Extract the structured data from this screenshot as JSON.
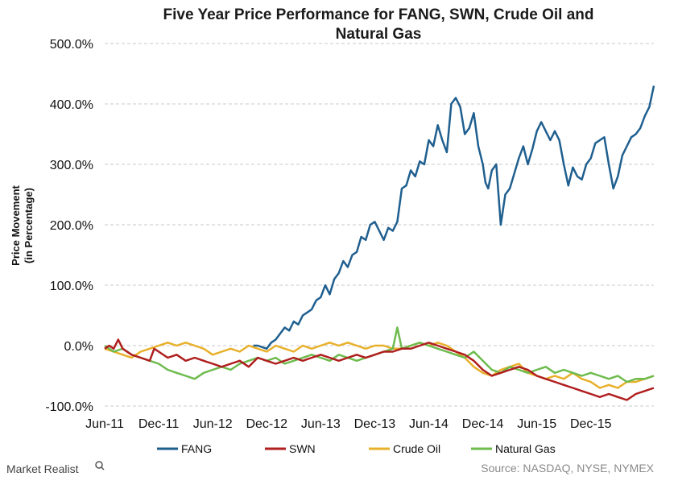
{
  "chart_data": {
    "type": "line",
    "title_line1": "Five Year Price Performance for FANG, SWN, Crude Oil and",
    "title_line2": "Natural Gas",
    "ylabel_line1": "Price Movement",
    "ylabel_line2": "(in Percentage)",
    "ylim": [
      -100,
      500
    ],
    "y_ticks": [
      "-100.0%",
      "0.0%",
      "100.0%",
      "200.0%",
      "300.0%",
      "400.0%",
      "500.0%"
    ],
    "y_tick_values": [
      -100,
      0,
      100,
      200,
      300,
      400,
      500
    ],
    "x_ticks": [
      "Jun-11",
      "Dec-11",
      "Jun-12",
      "Dec-12",
      "Jun-13",
      "Dec-13",
      "Jun-14",
      "Dec-14",
      "Jun-15",
      "Dec-15"
    ],
    "x_tick_values": [
      0,
      6,
      12,
      18,
      24,
      30,
      36,
      42,
      48,
      54
    ],
    "xlim": [
      0,
      61
    ],
    "x_unit": "months since Jun-11",
    "grid": true,
    "legend_position": "bottom",
    "colors": {
      "FANG": "#1f5f8f",
      "SWN": "#b01e1e",
      "Crude Oil": "#e8b02a",
      "Natural Gas": "#6dbb4d",
      "grid": "#c8c8c8"
    },
    "series": [
      {
        "name": "FANG",
        "x": [
          16.5,
          17,
          18,
          18.5,
          19,
          19.5,
          20,
          20.5,
          21,
          21.5,
          22,
          22.5,
          23,
          23.5,
          24,
          24.5,
          25,
          25.5,
          26,
          26.5,
          27,
          27.5,
          28,
          28.5,
          29,
          29.5,
          30,
          30.5,
          31,
          31.5,
          32,
          32.5,
          33,
          33.5,
          34,
          34.5,
          35,
          35.5,
          36,
          36.5,
          37,
          37.5,
          38,
          38.5,
          39,
          39.5,
          40,
          40.5,
          41,
          41.5,
          42,
          42.3,
          42.6,
          43,
          43.5,
          44,
          44.5,
          45,
          45.5,
          46,
          46.5,
          47,
          47.5,
          48,
          48.5,
          49,
          49.5,
          50,
          50.5,
          51,
          51.5,
          52,
          52.5,
          53,
          53.5,
          54,
          54.5,
          55,
          55.5,
          56,
          56.5,
          57,
          57.5,
          58,
          58.5,
          59,
          59.5,
          60,
          60.5,
          61
        ],
        "values": [
          0,
          0,
          -5,
          5,
          10,
          20,
          30,
          25,
          40,
          35,
          50,
          55,
          60,
          75,
          80,
          100,
          85,
          110,
          120,
          140,
          130,
          150,
          155,
          180,
          175,
          200,
          205,
          190,
          175,
          195,
          190,
          205,
          260,
          265,
          290,
          280,
          305,
          300,
          340,
          330,
          365,
          340,
          320,
          400,
          410,
          395,
          350,
          360,
          385,
          330,
          300,
          270,
          260,
          290,
          300,
          200,
          250,
          260,
          285,
          310,
          330,
          300,
          325,
          355,
          370,
          355,
          340,
          355,
          340,
          300,
          265,
          295,
          280,
          275,
          300,
          310,
          335,
          340,
          345,
          300,
          260,
          280,
          315,
          330,
          345,
          350,
          360,
          380,
          395,
          430
        ]
      },
      {
        "name": "SWN",
        "x": [
          0,
          0.5,
          1,
          1.5,
          2,
          3,
          4,
          5,
          5.5,
          6,
          7,
          8,
          9,
          10,
          11,
          12,
          13,
          14,
          15,
          16,
          17,
          18,
          19,
          20,
          21,
          22,
          23,
          24,
          25,
          26,
          27,
          28,
          29,
          30,
          31,
          32,
          33,
          34,
          35,
          36,
          37,
          38,
          39,
          40,
          41,
          42,
          43,
          44,
          45,
          46,
          47,
          48,
          49,
          50,
          51,
          52,
          53,
          54,
          55,
          56,
          57,
          58,
          59,
          60,
          61
        ],
        "values": [
          -5,
          0,
          -5,
          10,
          -5,
          -15,
          -20,
          -25,
          -5,
          -10,
          -20,
          -15,
          -25,
          -20,
          -25,
          -30,
          -35,
          -30,
          -25,
          -35,
          -20,
          -25,
          -30,
          -25,
          -20,
          -25,
          -20,
          -15,
          -20,
          -25,
          -20,
          -15,
          -20,
          -15,
          -10,
          -10,
          -5,
          -5,
          0,
          5,
          0,
          -5,
          -10,
          -15,
          -25,
          -40,
          -50,
          -45,
          -40,
          -35,
          -40,
          -50,
          -55,
          -60,
          -65,
          -70,
          -75,
          -80,
          -85,
          -80,
          -85,
          -90,
          -80,
          -75,
          -70
        ]
      },
      {
        "name": "Crude Oil",
        "x": [
          0,
          1,
          2,
          3,
          4,
          5,
          6,
          7,
          8,
          9,
          10,
          11,
          12,
          13,
          14,
          15,
          16,
          17,
          18,
          19,
          20,
          21,
          22,
          23,
          24,
          25,
          26,
          27,
          28,
          29,
          30,
          31,
          32,
          33,
          34,
          35,
          36,
          37,
          38,
          39,
          40,
          41,
          42,
          43,
          44,
          45,
          46,
          47,
          48,
          49,
          50,
          51,
          52,
          53,
          54,
          55,
          56,
          57,
          58,
          59,
          60,
          61
        ],
        "values": [
          -5,
          -10,
          -15,
          -20,
          -10,
          -5,
          0,
          5,
          0,
          5,
          0,
          -5,
          -15,
          -10,
          -5,
          -10,
          0,
          -5,
          -10,
          0,
          -5,
          -10,
          0,
          -5,
          0,
          5,
          0,
          5,
          0,
          -5,
          0,
          0,
          -5,
          -5,
          0,
          5,
          0,
          5,
          0,
          -10,
          -20,
          -35,
          -45,
          -50,
          -40,
          -35,
          -30,
          -45,
          -50,
          -55,
          -50,
          -55,
          -45,
          -55,
          -60,
          -70,
          -65,
          -70,
          -60,
          -60,
          -55,
          -50
        ]
      },
      {
        "name": "Natural Gas",
        "x": [
          0,
          1,
          2,
          3,
          4,
          5,
          6,
          7,
          8,
          9,
          10,
          11,
          12,
          13,
          14,
          15,
          16,
          17,
          18,
          19,
          20,
          21,
          22,
          23,
          24,
          25,
          26,
          27,
          28,
          29,
          30,
          31,
          32,
          32.5,
          33,
          34,
          35,
          36,
          37,
          38,
          39,
          40,
          41,
          42,
          43,
          44,
          45,
          46,
          47,
          48,
          49,
          50,
          51,
          52,
          53,
          54,
          55,
          56,
          57,
          58,
          59,
          60,
          61
        ],
        "values": [
          0,
          -10,
          -5,
          -15,
          -20,
          -25,
          -30,
          -40,
          -45,
          -50,
          -55,
          -45,
          -40,
          -35,
          -40,
          -30,
          -25,
          -20,
          -25,
          -20,
          -30,
          -25,
          -20,
          -15,
          -20,
          -25,
          -15,
          -20,
          -25,
          -20,
          -15,
          -10,
          -5,
          30,
          -5,
          0,
          5,
          0,
          -5,
          -10,
          -15,
          -20,
          -10,
          -25,
          -40,
          -45,
          -35,
          -40,
          -45,
          -40,
          -35,
          -45,
          -40,
          -45,
          -50,
          -45,
          -50,
          -55,
          -50,
          -60,
          -55,
          -55,
          -50
        ]
      }
    ],
    "legend": [
      "FANG",
      "SWN",
      "Crude Oil",
      "Natural Gas"
    ]
  },
  "source": "Source: NASDAQ, NYSE, NYMEX",
  "brand": "Market Realist"
}
